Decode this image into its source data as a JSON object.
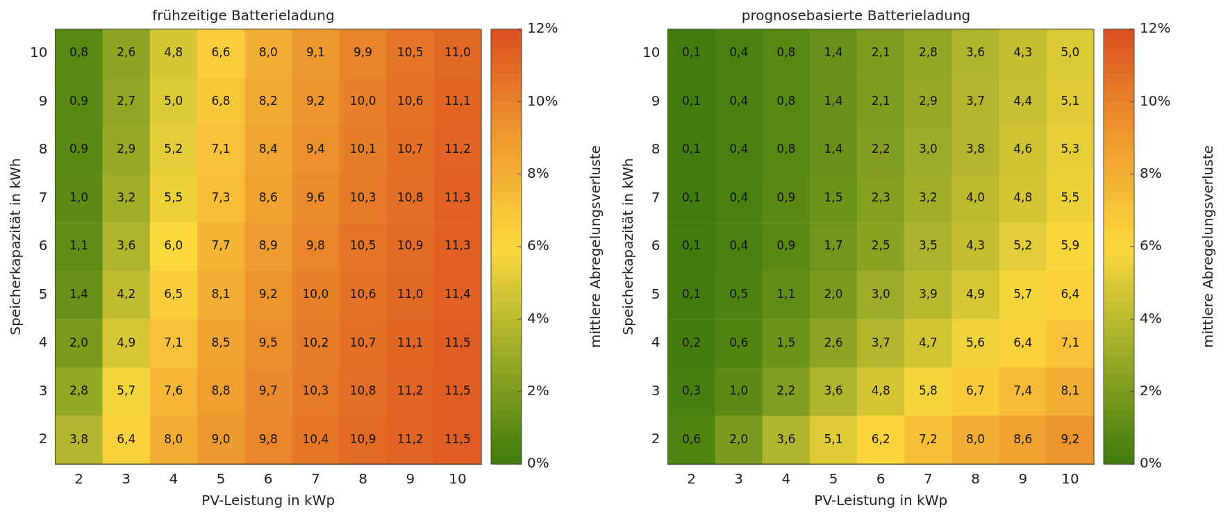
{
  "chart_data": [
    {
      "type": "heatmap",
      "title": "frühzeitige Batterieladung",
      "xlabel": "PV-Leistung in kWp",
      "ylabel": "Speicherkapazität in kWh",
      "clabel": "mittlere Abregelungsverluste",
      "categories": [
        "2",
        "3",
        "4",
        "5",
        "6",
        "7",
        "8",
        "9",
        "10"
      ],
      "y_categories": [
        "10",
        "9",
        "8",
        "7",
        "6",
        "5",
        "4",
        "3",
        "2"
      ],
      "cells": [
        [
          0.8,
          2.6,
          4.8,
          6.6,
          8.0,
          9.1,
          9.9,
          10.5,
          11.0
        ],
        [
          0.9,
          2.7,
          5.0,
          6.8,
          8.2,
          9.2,
          10.0,
          10.6,
          11.1
        ],
        [
          0.9,
          2.9,
          5.2,
          7.1,
          8.4,
          9.4,
          10.1,
          10.7,
          11.2
        ],
        [
          1.0,
          3.2,
          5.5,
          7.3,
          8.6,
          9.6,
          10.3,
          10.8,
          11.3
        ],
        [
          1.1,
          3.6,
          6.0,
          7.7,
          8.9,
          9.8,
          10.5,
          10.9,
          11.3
        ],
        [
          1.4,
          4.2,
          6.5,
          8.1,
          9.2,
          10.0,
          10.6,
          11.0,
          11.4
        ],
        [
          2.0,
          4.9,
          7.1,
          8.5,
          9.5,
          10.2,
          10.7,
          11.1,
          11.5
        ],
        [
          2.8,
          5.7,
          7.6,
          8.8,
          9.7,
          10.3,
          10.8,
          11.2,
          11.5
        ],
        [
          3.8,
          6.4,
          8.0,
          9.0,
          9.8,
          10.4,
          10.9,
          11.2,
          11.5
        ]
      ],
      "cell_labels": [
        [
          "0,8",
          "2,6",
          "4,8",
          "6,6",
          "8,0",
          "9,1",
          "9,9",
          "10,5",
          "11,0"
        ],
        [
          "0,9",
          "2,7",
          "5,0",
          "6,8",
          "8,2",
          "9,2",
          "10,0",
          "10,6",
          "11,1"
        ],
        [
          "0,9",
          "2,9",
          "5,2",
          "7,1",
          "8,4",
          "9,4",
          "10,1",
          "10,7",
          "11,2"
        ],
        [
          "1,0",
          "3,2",
          "5,5",
          "7,3",
          "8,6",
          "9,6",
          "10,3",
          "10,8",
          "11,3"
        ],
        [
          "1,1",
          "3,6",
          "6,0",
          "7,7",
          "8,9",
          "9,8",
          "10,5",
          "10,9",
          "11,3"
        ],
        [
          "1,4",
          "4,2",
          "6,5",
          "8,1",
          "9,2",
          "10,0",
          "10,6",
          "11,0",
          "11,4"
        ],
        [
          "2,0",
          "4,9",
          "7,1",
          "8,5",
          "9,5",
          "10,2",
          "10,7",
          "11,1",
          "11,5"
        ],
        [
          "2,8",
          "5,7",
          "7,6",
          "8,8",
          "9,7",
          "10,3",
          "10,8",
          "11,2",
          "11,5"
        ],
        [
          "3,8",
          "6,4",
          "8,0",
          "9,0",
          "9,8",
          "10,4",
          "10,9",
          "11,2",
          "11,5"
        ]
      ],
      "clim": [
        0,
        12
      ],
      "cticks": [
        {
          "value": 0,
          "label": "0%"
        },
        {
          "value": 2,
          "label": "2%"
        },
        {
          "value": 4,
          "label": "4%"
        },
        {
          "value": 6,
          "label": "6%"
        },
        {
          "value": 8,
          "label": "8%"
        },
        {
          "value": 10,
          "label": "10%"
        },
        {
          "value": 12,
          "label": "12%"
        }
      ]
    },
    {
      "type": "heatmap",
      "title": "prognosebasierte Batterieladung",
      "xlabel": "PV-Leistung in kWp",
      "ylabel": "Speicherkapazität in kWh",
      "clabel": "mittlere Abregelungsverluste",
      "categories": [
        "2",
        "3",
        "4",
        "5",
        "6",
        "7",
        "8",
        "9",
        "10"
      ],
      "y_categories": [
        "10",
        "9",
        "8",
        "7",
        "6",
        "5",
        "4",
        "3",
        "2"
      ],
      "cells": [
        [
          0.1,
          0.4,
          0.8,
          1.4,
          2.1,
          2.8,
          3.6,
          4.3,
          5.0
        ],
        [
          0.1,
          0.4,
          0.8,
          1.4,
          2.1,
          2.9,
          3.7,
          4.4,
          5.1
        ],
        [
          0.1,
          0.4,
          0.8,
          1.4,
          2.2,
          3.0,
          3.8,
          4.6,
          5.3
        ],
        [
          0.1,
          0.4,
          0.9,
          1.5,
          2.3,
          3.2,
          4.0,
          4.8,
          5.5
        ],
        [
          0.1,
          0.4,
          0.9,
          1.7,
          2.5,
          3.5,
          4.3,
          5.2,
          5.9
        ],
        [
          0.1,
          0.5,
          1.1,
          2.0,
          3.0,
          3.9,
          4.9,
          5.7,
          6.4
        ],
        [
          0.2,
          0.6,
          1.5,
          2.6,
          3.7,
          4.7,
          5.6,
          6.4,
          7.1
        ],
        [
          0.3,
          1.0,
          2.2,
          3.6,
          4.8,
          5.8,
          6.7,
          7.4,
          8.1
        ],
        [
          0.6,
          2.0,
          3.6,
          5.1,
          6.2,
          7.2,
          8.0,
          8.6,
          9.2
        ]
      ],
      "cell_labels": [
        [
          "0,1",
          "0,4",
          "0,8",
          "1,4",
          "2,1",
          "2,8",
          "3,6",
          "4,3",
          "5,0"
        ],
        [
          "0,1",
          "0,4",
          "0,8",
          "1,4",
          "2,1",
          "2,9",
          "3,7",
          "4,4",
          "5,1"
        ],
        [
          "0,1",
          "0,4",
          "0,8",
          "1,4",
          "2,2",
          "3,0",
          "3,8",
          "4,6",
          "5,3"
        ],
        [
          "0,1",
          "0,4",
          "0,9",
          "1,5",
          "2,3",
          "3,2",
          "4,0",
          "4,8",
          "5,5"
        ],
        [
          "0,1",
          "0,4",
          "0,9",
          "1,7",
          "2,5",
          "3,5",
          "4,3",
          "5,2",
          "5,9"
        ],
        [
          "0,1",
          "0,5",
          "1,1",
          "2,0",
          "3,0",
          "3,9",
          "4,9",
          "5,7",
          "6,4"
        ],
        [
          "0,2",
          "0,6",
          "1,5",
          "2,6",
          "3,7",
          "4,7",
          "5,6",
          "6,4",
          "7,1"
        ],
        [
          "0,3",
          "1,0",
          "2,2",
          "3,6",
          "4,8",
          "5,8",
          "6,7",
          "7,4",
          "8,1"
        ],
        [
          "0,6",
          "2,0",
          "3,6",
          "5,1",
          "6,2",
          "7,2",
          "8,0",
          "8,6",
          "9,2"
        ]
      ],
      "clim": [
        0,
        12
      ],
      "cticks": [
        {
          "value": 0,
          "label": "0%"
        },
        {
          "value": 2,
          "label": "2%"
        },
        {
          "value": 4,
          "label": "4%"
        },
        {
          "value": 6,
          "label": "6%"
        },
        {
          "value": 8,
          "label": "8%"
        },
        {
          "value": 10,
          "label": "10%"
        },
        {
          "value": 12,
          "label": "12%"
        }
      ]
    }
  ]
}
